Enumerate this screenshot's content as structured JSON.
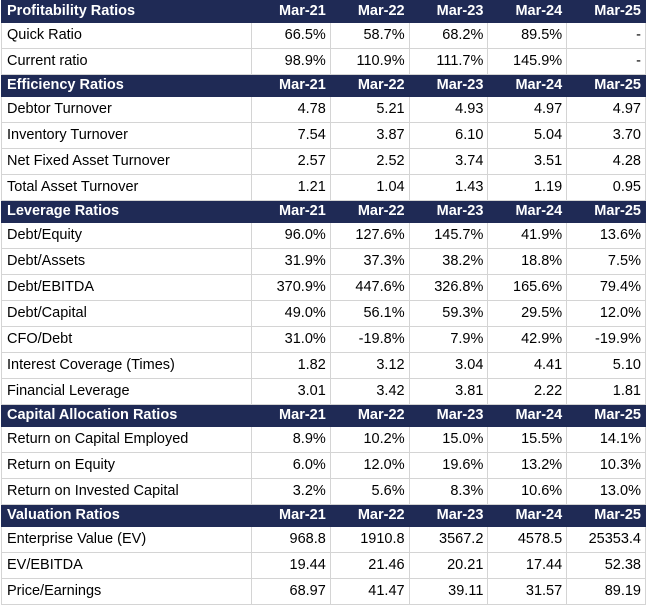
{
  "columns": [
    "Mar-21",
    "Mar-22",
    "Mar-23",
    "Mar-24",
    "Mar-25"
  ],
  "sections": [
    {
      "title": "Profitability Ratios",
      "rows": [
        {
          "label": "Quick Ratio",
          "values": [
            "66.5%",
            "58.7%",
            "68.2%",
            "89.5%",
            "-"
          ]
        },
        {
          "label": "Current ratio",
          "values": [
            "98.9%",
            "110.9%",
            "111.7%",
            "145.9%",
            "-"
          ]
        }
      ]
    },
    {
      "title": "Efficiency Ratios",
      "rows": [
        {
          "label": "Debtor Turnover",
          "values": [
            "4.78",
            "5.21",
            "4.93",
            "4.97",
            "4.97"
          ]
        },
        {
          "label": "Inventory Turnover",
          "values": [
            "7.54",
            "3.87",
            "6.10",
            "5.04",
            "3.70"
          ]
        },
        {
          "label": "Net Fixed Asset Turnover",
          "values": [
            "2.57",
            "2.52",
            "3.74",
            "3.51",
            "4.28"
          ]
        },
        {
          "label": "Total Asset Turnover",
          "values": [
            "1.21",
            "1.04",
            "1.43",
            "1.19",
            "0.95"
          ]
        }
      ]
    },
    {
      "title": "Leverage Ratios",
      "rows": [
        {
          "label": "Debt/Equity",
          "values": [
            "96.0%",
            "127.6%",
            "145.7%",
            "41.9%",
            "13.6%"
          ]
        },
        {
          "label": "Debt/Assets",
          "values": [
            "31.9%",
            "37.3%",
            "38.2%",
            "18.8%",
            "7.5%"
          ]
        },
        {
          "label": "Debt/EBITDA",
          "values": [
            "370.9%",
            "447.6%",
            "326.8%",
            "165.6%",
            "79.4%"
          ]
        },
        {
          "label": "Debt/Capital",
          "values": [
            "49.0%",
            "56.1%",
            "59.3%",
            "29.5%",
            "12.0%"
          ]
        },
        {
          "label": "CFO/Debt",
          "values": [
            "31.0%",
            "-19.8%",
            "7.9%",
            "42.9%",
            "-19.9%"
          ]
        },
        {
          "label": "Interest Coverage (Times)",
          "values": [
            "1.82",
            "3.12",
            "3.04",
            "4.41",
            "5.10"
          ]
        },
        {
          "label": "Financial Leverage",
          "values": [
            "3.01",
            "3.42",
            "3.81",
            "2.22",
            "1.81"
          ]
        }
      ]
    },
    {
      "title": "Capital Allocation Ratios",
      "rows": [
        {
          "label": "Return on Capital Employed",
          "values": [
            "8.9%",
            "10.2%",
            "15.0%",
            "15.5%",
            "14.1%"
          ]
        },
        {
          "label": "Return on Equity",
          "values": [
            "6.0%",
            "12.0%",
            "19.6%",
            "13.2%",
            "10.3%"
          ]
        },
        {
          "label": "Return on Invested Capital",
          "values": [
            "3.2%",
            "5.6%",
            "8.3%",
            "10.6%",
            "13.0%"
          ]
        }
      ]
    },
    {
      "title": "Valuation Ratios",
      "rows": [
        {
          "label": "Enterprise Value (EV)",
          "values": [
            "968.8",
            "1910.8",
            "3567.2",
            "4578.5",
            "25353.4"
          ]
        },
        {
          "label": "EV/EBITDA",
          "values": [
            "19.44",
            "21.46",
            "20.21",
            "17.44",
            "52.38"
          ]
        },
        {
          "label": "Price/Earnings",
          "values": [
            "68.97",
            "41.47",
            "39.11",
            "31.57",
            "89.19"
          ]
        }
      ]
    }
  ],
  "colors": {
    "header_bg": "#1f2a55",
    "header_text": "#ffffff",
    "grid": "#d4d4d4"
  }
}
